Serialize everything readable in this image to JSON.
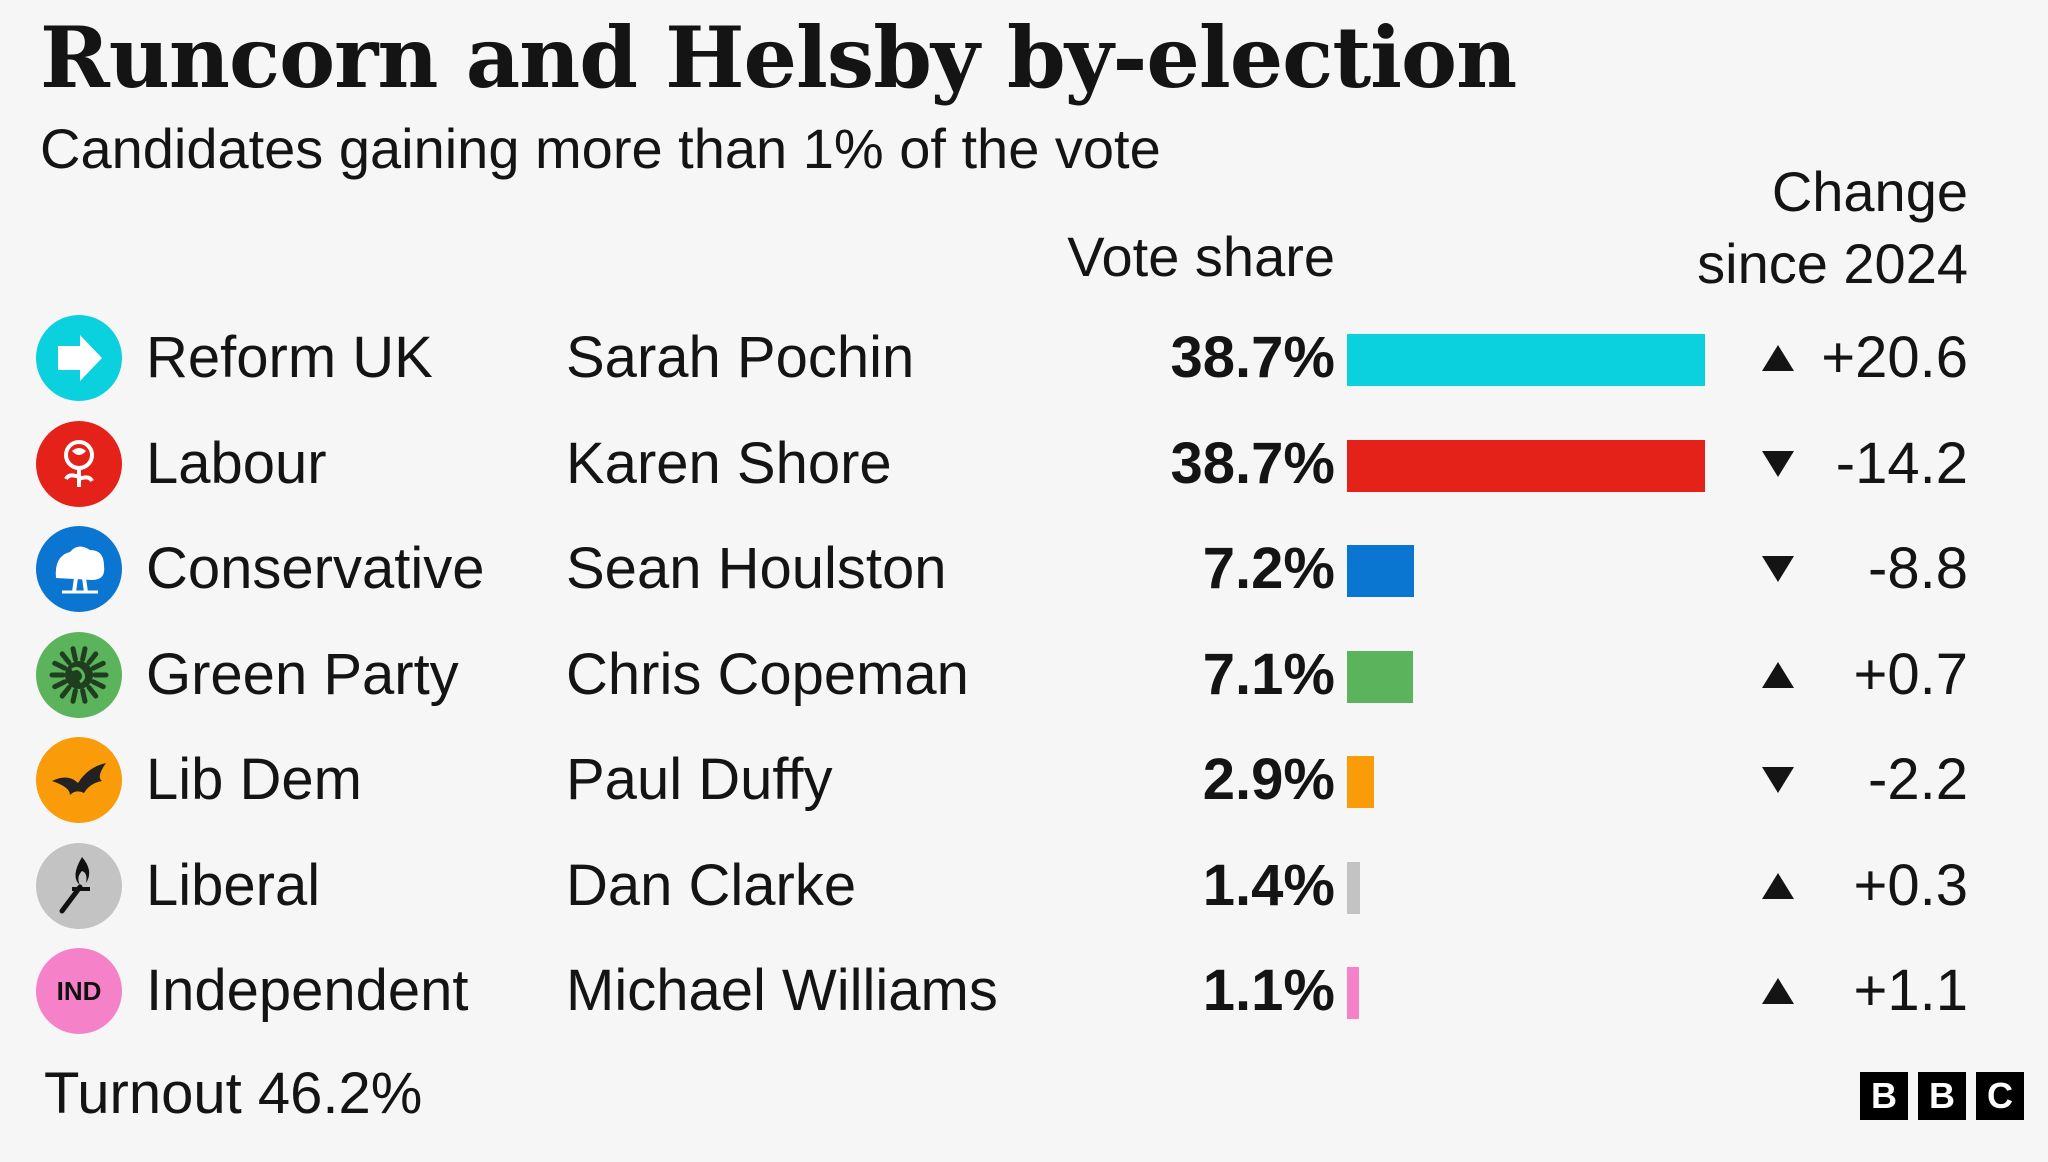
{
  "chart_data": {
    "type": "bar",
    "title": "Runcorn and Helsby by-election",
    "subtitle": "Candidates gaining more than 1% of the vote",
    "column_headers": {
      "vote_share": "Vote share",
      "change": [
        "Change",
        "since 2024"
      ]
    },
    "series": [
      {
        "name": "Vote share",
        "values": [
          38.7,
          38.7,
          7.2,
          7.1,
          2.9,
          1.4,
          1.1
        ]
      }
    ],
    "rows": [
      {
        "party": "Reform UK",
        "candidate": "Sarah Pochin",
        "vote_share": 38.7,
        "vote_share_label": "38.7%",
        "change": 20.6,
        "change_label": "+20.6",
        "direction": "up",
        "color": "#0bd0de",
        "logo_icon": "reform-arrow-icon"
      },
      {
        "party": "Labour",
        "candidate": "Karen Shore",
        "vote_share": 38.7,
        "vote_share_label": "38.7%",
        "change": -14.2,
        "change_label": "-14.2",
        "direction": "down",
        "color": "#e4221a",
        "logo_icon": "labour-rose-icon"
      },
      {
        "party": "Conservative",
        "candidate": "Sean Houlston",
        "vote_share": 7.2,
        "vote_share_label": "7.2%",
        "change": -8.8,
        "change_label": "-8.8",
        "direction": "down",
        "color": "#0b75d2",
        "logo_icon": "conservative-tree-icon"
      },
      {
        "party": "Green Party",
        "candidate": "Chris Copeman",
        "vote_share": 7.1,
        "vote_share_label": "7.1%",
        "change": 0.7,
        "change_label": "+0.7",
        "direction": "up",
        "color": "#5bb45b",
        "logo_icon": "green-globe-icon"
      },
      {
        "party": "Lib Dem",
        "candidate": "Paul Duffy",
        "vote_share": 2.9,
        "vote_share_label": "2.9%",
        "change": -2.2,
        "change_label": "-2.2",
        "direction": "down",
        "color": "#fa9b0a",
        "logo_icon": "libdem-bird-icon"
      },
      {
        "party": "Liberal",
        "candidate": "Dan Clarke",
        "vote_share": 1.4,
        "vote_share_label": "1.4%",
        "change": 0.3,
        "change_label": "+0.3",
        "direction": "up",
        "color": "#c3c3c3",
        "logo_icon": "liberal-torch-icon"
      },
      {
        "party": "Independent",
        "candidate": "Michael Williams",
        "vote_share": 1.1,
        "vote_share_label": "1.1%",
        "change": 1.1,
        "change_label": "+1.1",
        "direction": "up",
        "color": "#f582c8",
        "logo_icon": "independent-badge-icon",
        "logo_text": "IND"
      }
    ],
    "xlim": [
      0,
      38.7
    ]
  },
  "footer": {
    "turnout": "Turnout 46.2%",
    "brand": [
      "B",
      "B",
      "C"
    ]
  }
}
